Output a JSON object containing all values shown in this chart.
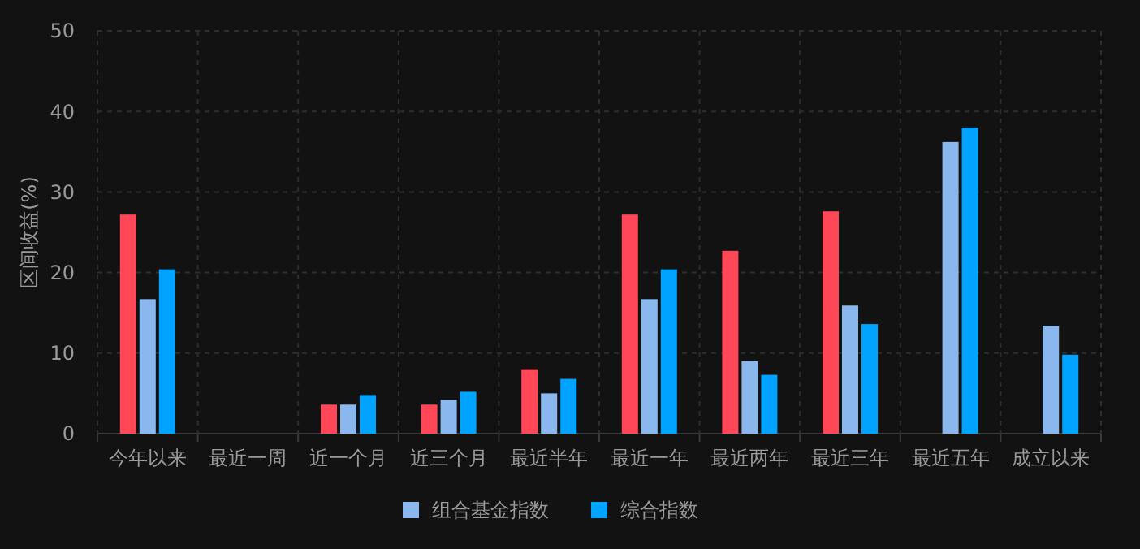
{
  "chart_data": {
    "type": "bar",
    "ylabel": "区间收益(%)",
    "categories": [
      "今年以来",
      "最近一周",
      "近一个月",
      "近三个月",
      "最近半年",
      "最近一年",
      "最近两年",
      "最近三年",
      "最近五年",
      "成立以来"
    ],
    "series": [
      {
        "color": "#ff4757",
        "values": [
          27.2,
          null,
          3.6,
          3.6,
          8.0,
          27.2,
          22.7,
          27.6,
          null,
          null
        ]
      },
      {
        "name": "组合基金指数",
        "color": "#8ab8ee",
        "values": [
          16.7,
          null,
          3.6,
          4.2,
          5.0,
          16.7,
          9.0,
          15.9,
          36.2,
          13.4
        ]
      },
      {
        "name": "综合指数",
        "color": "#00a3ff",
        "values": [
          20.4,
          null,
          4.8,
          5.2,
          6.8,
          20.4,
          7.3,
          13.6,
          38.0,
          9.8
        ]
      }
    ],
    "ylim": [
      0,
      50
    ],
    "yticks": [
      0,
      10,
      20,
      30,
      40,
      50
    ],
    "grid": true,
    "legend": "bottom"
  }
}
